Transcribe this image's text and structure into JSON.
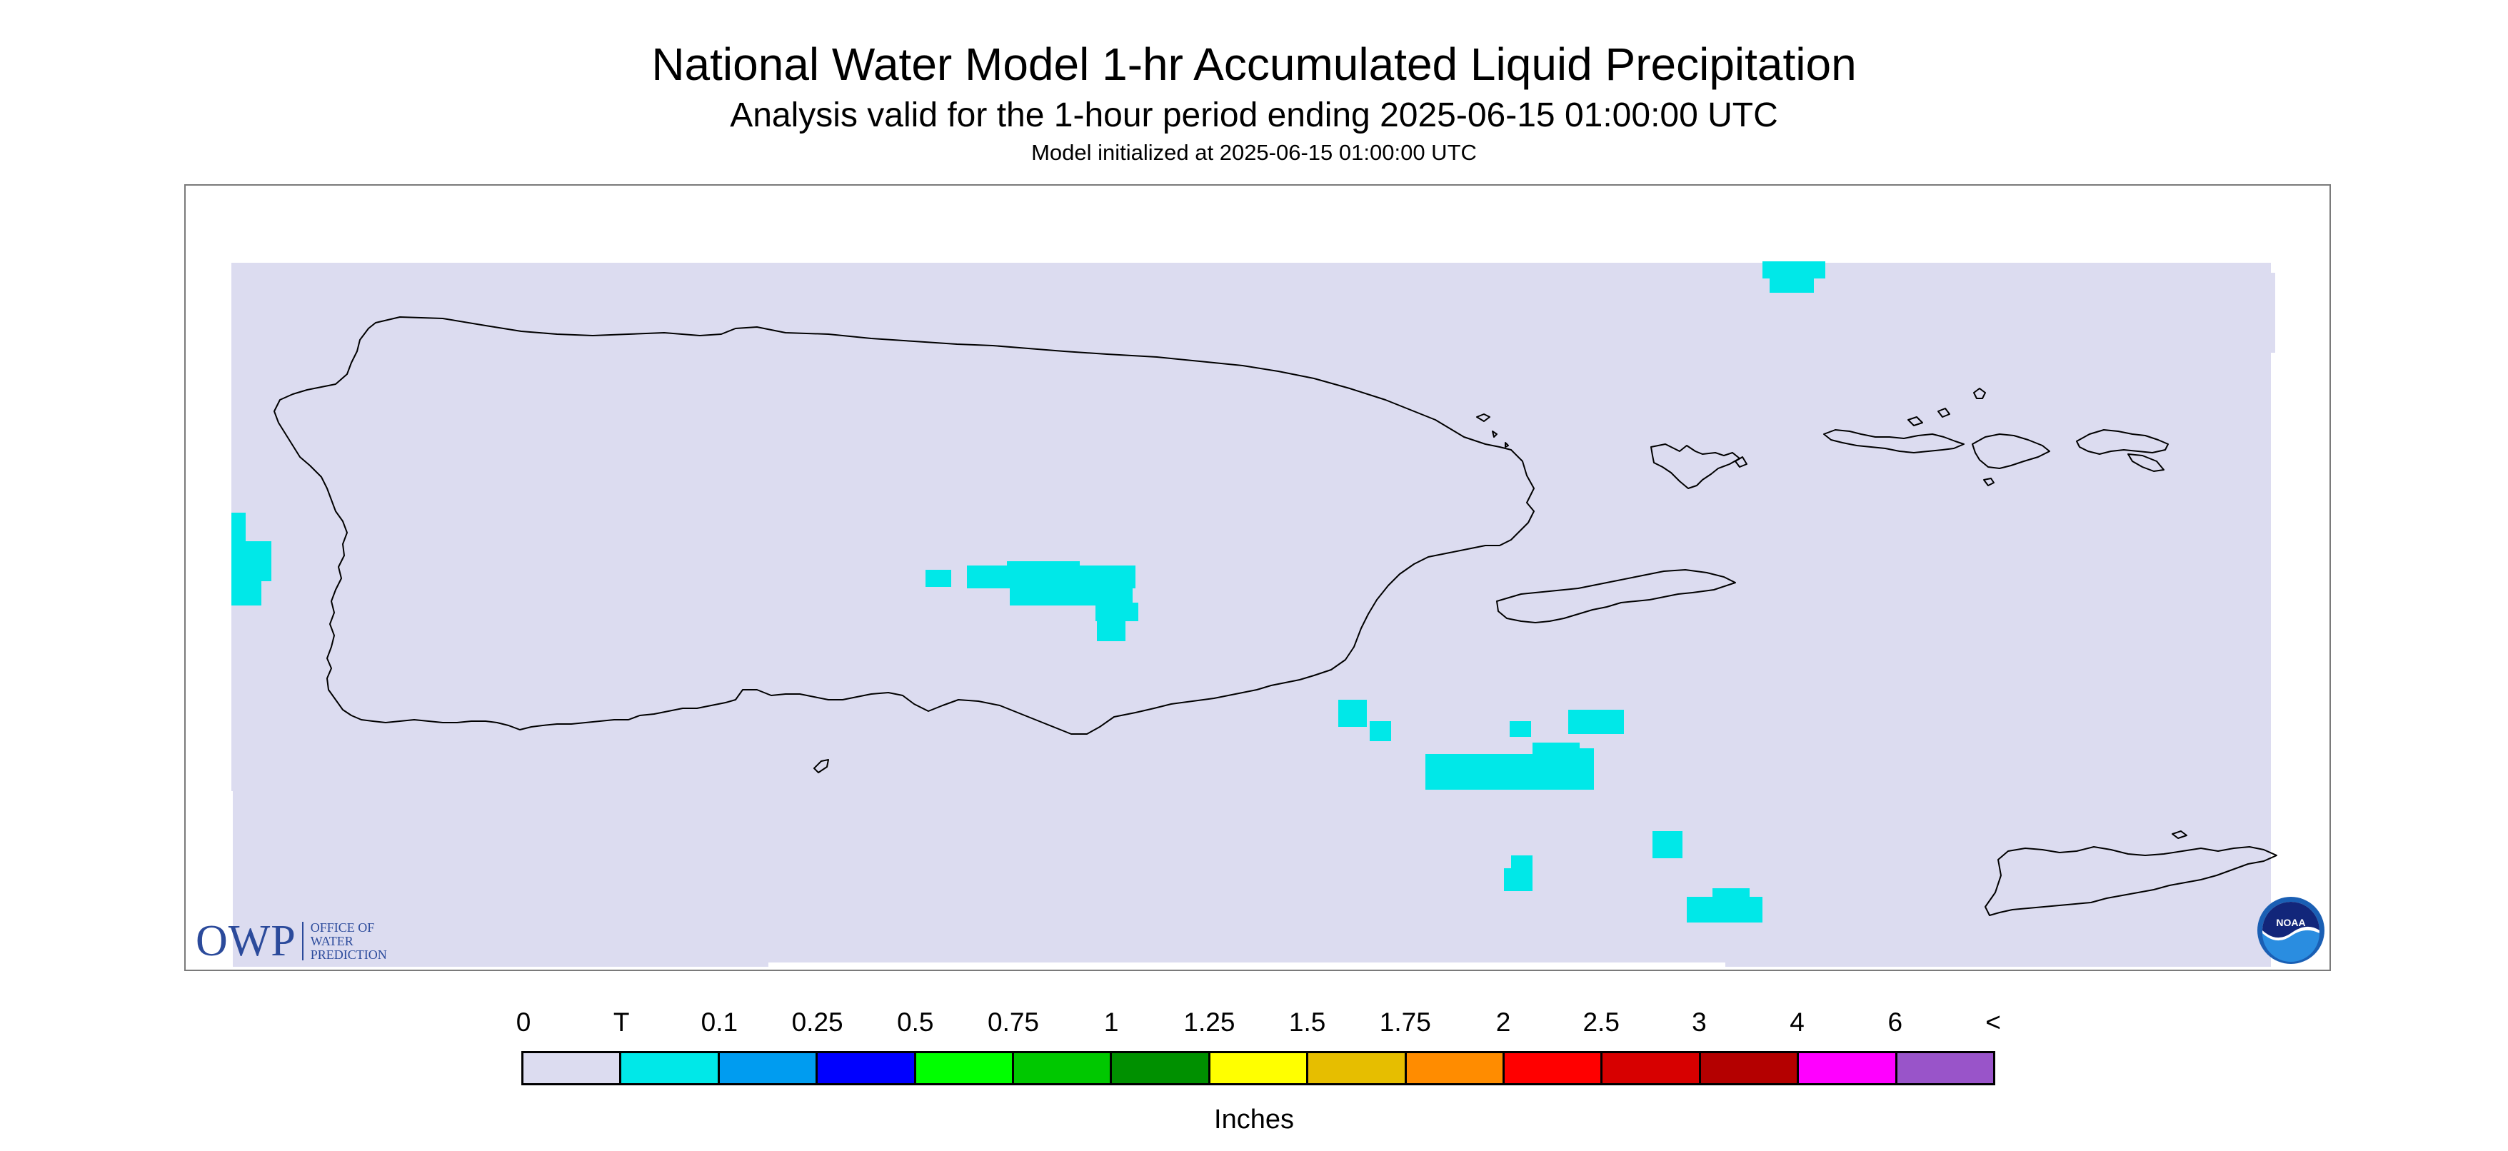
{
  "header": {
    "title": "National Water Model 1-hr Accumulated Liquid Precipitation",
    "subtitle": "Analysis valid for the 1-hour period ending 2025-06-15 01:00:00 UTC",
    "init": "Model initialized at 2025-06-15 01:00:00 UTC"
  },
  "map": {
    "background_color": "#dcdcf0",
    "coastline_color": "#000000",
    "precip_color": "#00e8e8"
  },
  "legend": {
    "unit": "Inches",
    "labels": [
      "0",
      "T",
      "0.1",
      "0.25",
      "0.5",
      "0.75",
      "1",
      "1.25",
      "1.5",
      "1.75",
      "2",
      "2.5",
      "3",
      "4",
      "6",
      "<"
    ],
    "colors": [
      "#dcdcf0",
      "#00e8e8",
      "#009cf0",
      "#0000ff",
      "#00ff00",
      "#00c800",
      "#009000",
      "#ffff00",
      "#e6be00",
      "#ff8c00",
      "#ff0000",
      "#d70000",
      "#b40000",
      "#ff00ff",
      "#9954c9"
    ]
  },
  "logos": {
    "owp_mark": "OWP",
    "owp_line1": "OFFICE OF",
    "owp_line2": "WATER",
    "owp_line3": "PREDICTION",
    "noaa_text": "NOAA"
  }
}
